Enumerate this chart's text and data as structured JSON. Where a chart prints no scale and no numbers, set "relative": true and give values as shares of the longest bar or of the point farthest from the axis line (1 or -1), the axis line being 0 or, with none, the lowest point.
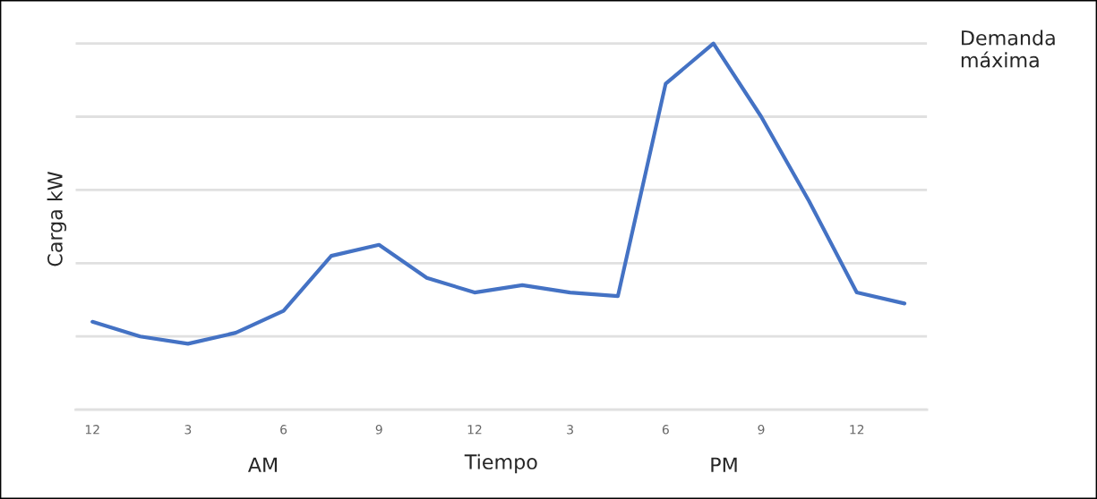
{
  "chart_data": {
    "type": "line",
    "relative": true,
    "xlabel": "Tiempo",
    "ylabel": "Carga kW",
    "categories": [
      "12",
      null,
      "3",
      null,
      "6",
      null,
      "9",
      null,
      "12",
      null,
      "3",
      null,
      "6",
      null,
      "9",
      null,
      "12",
      null
    ],
    "series": [
      {
        "color": "#4472c4",
        "values": [
          0.24,
          0.2,
          0.18,
          0.21,
          0.27,
          0.42,
          0.45,
          0.36,
          0.32,
          0.34,
          0.32,
          0.31,
          0.89,
          1,
          0.8,
          0.57,
          0.32,
          0.29
        ]
      }
    ],
    "annotations": [
      "AM",
      "PM",
      "Demanda máxima"
    ],
    "grid": "y",
    "marker": "none",
    "line_style": "solid",
    "legend": false
  }
}
